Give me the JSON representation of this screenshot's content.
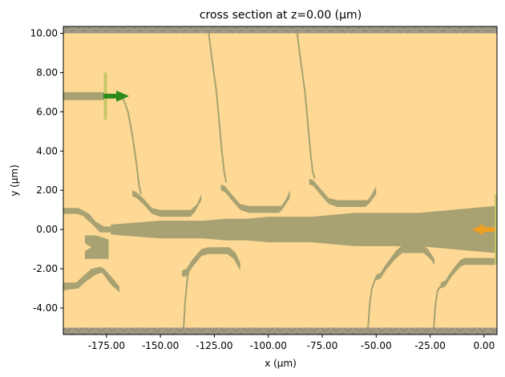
{
  "chart_data": {
    "type": "other",
    "title": "cross section at z=0.00 (μm)",
    "xlabel": "x (μm)",
    "ylabel": "y (μm)",
    "xlim": [
      -195,
      6
    ],
    "ylim": [
      -5.35,
      10.35
    ],
    "x_ticks": [
      -175,
      -150,
      -125,
      -100,
      -75,
      -50,
      -25,
      0
    ],
    "x_tick_labels": [
      "-175.00",
      "-150.00",
      "-125.00",
      "-100.00",
      "-75.00",
      "-50.00",
      "-25.00",
      "0.00"
    ],
    "y_ticks": [
      10,
      8,
      6,
      4,
      2,
      0,
      -2,
      -4
    ],
    "y_tick_labels": [
      "10.00",
      "8.00",
      "6.00",
      "4.00",
      "2.00",
      "0.00",
      "-2.00",
      "-4.00"
    ],
    "grid": false,
    "colors": {
      "background": "#fdd995",
      "structure": "#a8a171",
      "boundary": "#a09a84",
      "source": "#c8c867",
      "source_arrow": "#2a8a1a",
      "monitor_arrow": "#f0a020"
    },
    "boundary_bands": [
      {
        "ymin": 10.0,
        "ymax": 10.35
      },
      {
        "ymin": -5.35,
        "ymax": -5.0
      }
    ],
    "main_waveguide": {
      "x": [
        -173,
        -162,
        -150,
        -140,
        -130,
        -120,
        -110,
        -100,
        -90,
        -80,
        -70,
        -60,
        -50,
        -40,
        -30,
        -20,
        -10,
        0,
        6
      ],
      "half_width": [
        0.25,
        0.35,
        0.45,
        0.45,
        0.45,
        0.55,
        0.55,
        0.65,
        0.65,
        0.65,
        0.75,
        0.85,
        0.85,
        0.85,
        0.85,
        0.95,
        1.05,
        1.15,
        1.2
      ]
    },
    "structures": [
      [
        [
          -195,
          1.1
        ],
        [
          -188,
          1.1
        ],
        [
          -183,
          0.8
        ],
        [
          -180,
          0.4
        ],
        [
          -176,
          0.15
        ],
        [
          -172,
          0.15
        ],
        [
          -172,
          -0.15
        ],
        [
          -178,
          -0.15
        ],
        [
          -182,
          0.3
        ],
        [
          -186,
          0.7
        ],
        [
          -189,
          0.8
        ],
        [
          -195,
          0.8
        ]
      ],
      [
        [
          -195,
          -2.7
        ],
        [
          -189,
          -2.7
        ],
        [
          -186,
          -2.4
        ],
        [
          -182,
          -2.0
        ],
        [
          -178,
          -1.9
        ],
        [
          -176,
          -2.0
        ],
        [
          -172,
          -2.5
        ],
        [
          -169,
          -2.9
        ],
        [
          -169,
          -3.2
        ],
        [
          -173,
          -2.8
        ],
        [
          -177,
          -2.2
        ],
        [
          -180,
          -2.3
        ],
        [
          -184,
          -2.6
        ],
        [
          -188,
          -3.0
        ],
        [
          -195,
          -3.1
        ]
      ],
      [
        [
          -185,
          -0.3
        ],
        [
          -180,
          -0.3
        ],
        [
          -174,
          -0.5
        ],
        [
          -174,
          -1.5
        ],
        [
          -185,
          -1.5
        ],
        [
          -185,
          -1.1
        ],
        [
          -182,
          -0.9
        ],
        [
          -185,
          -0.7
        ]
      ],
      [
        [
          -163,
          2.0
        ],
        [
          -161,
          1.9
        ],
        [
          -158,
          1.6
        ],
        [
          -154,
          1.1
        ],
        [
          -150,
          1.0
        ],
        [
          -136,
          1.0
        ],
        [
          -133,
          1.3
        ],
        [
          -131,
          1.8
        ],
        [
          -131,
          1.5
        ],
        [
          -134,
          0.9
        ],
        [
          -136,
          0.65
        ],
        [
          -150,
          0.65
        ],
        [
          -154,
          0.8
        ],
        [
          -158,
          1.3
        ],
        [
          -161,
          1.6
        ],
        [
          -163,
          1.7
        ]
      ],
      [
        [
          -122,
          2.3
        ],
        [
          -120,
          2.2
        ],
        [
          -117,
          1.8
        ],
        [
          -113,
          1.3
        ],
        [
          -109,
          1.2
        ],
        [
          -94,
          1.2
        ],
        [
          -92,
          1.5
        ],
        [
          -90,
          2.0
        ],
        [
          -90,
          1.6
        ],
        [
          -93,
          1.1
        ],
        [
          -95,
          0.85
        ],
        [
          -109,
          0.85
        ],
        [
          -113,
          1.0
        ],
        [
          -117,
          1.5
        ],
        [
          -120,
          1.9
        ],
        [
          -122,
          2.0
        ]
      ],
      [
        [
          -81,
          2.6
        ],
        [
          -79,
          2.5
        ],
        [
          -76,
          2.1
        ],
        [
          -72,
          1.6
        ],
        [
          -68,
          1.5
        ],
        [
          -54,
          1.5
        ],
        [
          -52,
          1.8
        ],
        [
          -50,
          2.2
        ],
        [
          -50,
          1.8
        ],
        [
          -53,
          1.35
        ],
        [
          -55,
          1.15
        ],
        [
          -68,
          1.15
        ],
        [
          -72,
          1.3
        ],
        [
          -76,
          1.8
        ],
        [
          -79,
          2.2
        ],
        [
          -81,
          2.3
        ]
      ],
      [
        [
          -140,
          -2.1
        ],
        [
          -138,
          -2.0
        ],
        [
          -135,
          -1.5
        ],
        [
          -131,
          -1.0
        ],
        [
          -128,
          -0.9
        ],
        [
          -118,
          -0.9
        ],
        [
          -115,
          -1.2
        ],
        [
          -113,
          -1.7
        ],
        [
          -113,
          -2.1
        ],
        [
          -116,
          -1.5
        ],
        [
          -119,
          -1.25
        ],
        [
          -128,
          -1.25
        ],
        [
          -131,
          -1.35
        ],
        [
          -135,
          -1.9
        ],
        [
          -138,
          -2.4
        ],
        [
          -140,
          -2.4
        ]
      ],
      [
        [
          -50,
          -2.6
        ],
        [
          -48,
          -2.5
        ],
        [
          -45,
          -2.0
        ],
        [
          -41,
          -1.5
        ],
        [
          -38,
          -1.2
        ],
        [
          -28,
          -1.2
        ],
        [
          -25,
          -1.5
        ],
        [
          -23,
          -1.8
        ],
        [
          -23,
          -1.5
        ],
        [
          -26,
          -1.0
        ],
        [
          -28,
          -0.8
        ],
        [
          -38,
          -0.8
        ],
        [
          -41,
          -1.1
        ],
        [
          -45,
          -1.7
        ],
        [
          -48,
          -2.2
        ],
        [
          -50,
          -2.3
        ]
      ],
      [
        [
          -20,
          -3.0
        ],
        [
          -18,
          -2.9
        ],
        [
          -15,
          -2.4
        ],
        [
          -11,
          -1.9
        ],
        [
          -9,
          -1.8
        ],
        [
          5,
          -1.8
        ],
        [
          5,
          -1.45
        ],
        [
          -9,
          -1.45
        ],
        [
          -11,
          -1.55
        ],
        [
          -15,
          -2.1
        ],
        [
          -18,
          -2.6
        ],
        [
          -20,
          -2.7
        ]
      ],
      [
        [
          -195,
          7.0
        ],
        [
          -176,
          7.0
        ],
        [
          -176,
          6.6
        ],
        [
          -195,
          6.6
        ]
      ]
    ],
    "curves": [
      [
        [
          -169,
          6.8
        ],
        [
          -167,
          6.6
        ],
        [
          -165,
          6.0
        ],
        [
          -163,
          4.8
        ],
        [
          -161,
          3.3
        ],
        [
          -160,
          2.3
        ],
        [
          -159,
          1.8
        ]
      ],
      [
        [
          -128,
          10.35
        ],
        [
          -126,
          8.6
        ],
        [
          -124,
          7.0
        ],
        [
          -122.5,
          5.2
        ],
        [
          -121.5,
          4.0
        ],
        [
          -120.5,
          3.0
        ],
        [
          -119.5,
          2.4
        ]
      ],
      [
        [
          -87,
          10.35
        ],
        [
          -85,
          8.6
        ],
        [
          -83,
          7.0
        ],
        [
          -81.5,
          5.2
        ],
        [
          -80.5,
          4.0
        ],
        [
          -79.5,
          3.0
        ],
        [
          -78.5,
          2.6
        ]
      ],
      [
        [
          -139.5,
          -5.35
        ],
        [
          -139,
          -4.6
        ],
        [
          -138.5,
          -3.6
        ],
        [
          -137.5,
          -2.5
        ],
        [
          -136.5,
          -1.8
        ]
      ],
      [
        [
          -54,
          -5.35
        ],
        [
          -53.5,
          -4.6
        ],
        [
          -53,
          -3.8
        ],
        [
          -52,
          -3.0
        ],
        [
          -50,
          -2.4
        ]
      ],
      [
        [
          -23.5,
          -5.35
        ],
        [
          -23,
          -4.6
        ],
        [
          -22.5,
          -3.8
        ],
        [
          -21.5,
          -3.1
        ],
        [
          -19.5,
          -2.8
        ]
      ]
    ],
    "source_line": {
      "x": -175.5,
      "y": [
        5.6,
        8.0
      ]
    },
    "source_arrow": {
      "x_start": -176.5,
      "x_end": -166,
      "y": 6.8
    },
    "monitor_line": {
      "x": 5.5,
      "y": [
        -1.8,
        1.8
      ]
    },
    "monitor_arrow": {
      "x_start": 5,
      "x_end": -4,
      "y": 0
    }
  }
}
